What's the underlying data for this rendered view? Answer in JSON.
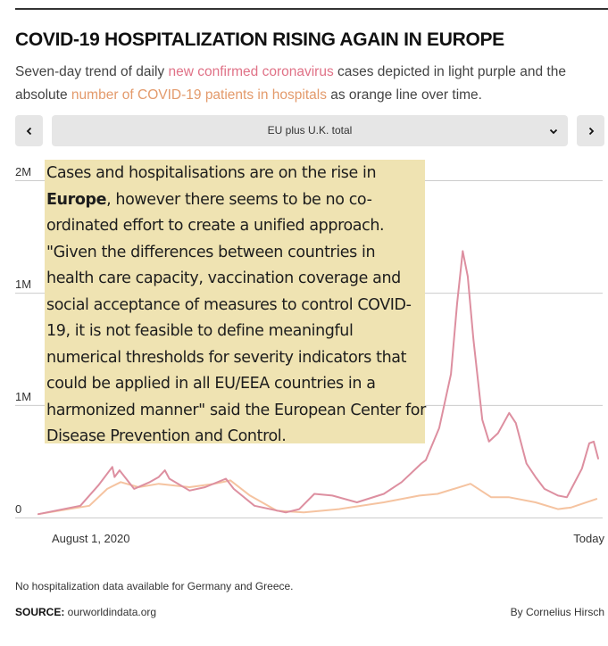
{
  "header": {
    "title": "COVID-19 HOSPITALIZATION RISING AGAIN IN EUROPE",
    "subtitle_part1": "Seven-day trend of daily ",
    "subtitle_cases_link": "new confirmed coronavirus",
    "subtitle_part2": " cases depicted in light purple and the absolute ",
    "subtitle_hosp_link": "number of COVID-19 patients in hospitals",
    "subtitle_part3": " as orange line over time."
  },
  "controls": {
    "prev_icon": "chevron-left-icon",
    "next_icon": "chevron-right-icon",
    "selected_region": "EU plus U.K. total",
    "dropdown_icon": "chevron-down-icon"
  },
  "annotation": {
    "text_before": "Cases and hospitalisations are on the rise in ",
    "text_bold": "Europe",
    "text_after": ", however there seems to be no co-ordinated effort to create a unified approach. \"Given the differences between countries in health care capacity, vaccination coverage and social acceptance of measures to control COVID-19, it is not feasible to define meaningful numerical thresholds for severity indicators that could be applied in all EU/EEA countries in a harmonized manner\" said the  European Center for Disease Prevention and Control."
  },
  "colors": {
    "cases": "#dd8fa0",
    "hospital": "#f5c3a0",
    "cases_text": "#e07287",
    "hospital_text": "#e39a6b",
    "annotation_bg": "#efe3b2",
    "gridline": "#cccccc"
  },
  "chart_data": {
    "type": "line",
    "title": "COVID-19 HOSPITALIZATION RISING AGAIN IN EUROPE",
    "xlabel": "",
    "ylabel": "",
    "x_tick_labels": [
      "August 1, 2020",
      "Today"
    ],
    "y_ticks": [
      {
        "value": 0,
        "label": "0"
      },
      {
        "value": 0.667,
        "label": "1M"
      },
      {
        "value": 1.333,
        "label": "1M"
      },
      {
        "value": 2.0,
        "label": "2M"
      }
    ],
    "ylim": [
      0,
      2.0
    ],
    "xlim": [
      0,
      1
    ],
    "x_unit": "fraction of period from August 1, 2020 to Today",
    "y_unit": "millions",
    "grid": true,
    "series": [
      {
        "name": "New confirmed coronavirus cases (7-day trend)",
        "color_key": "cases",
        "points": [
          [
            0.0,
            0.02
          ],
          [
            0.075,
            0.07
          ],
          [
            0.107,
            0.19
          ],
          [
            0.132,
            0.3
          ],
          [
            0.136,
            0.24
          ],
          [
            0.145,
            0.28
          ],
          [
            0.171,
            0.17
          ],
          [
            0.199,
            0.21
          ],
          [
            0.215,
            0.24
          ],
          [
            0.226,
            0.28
          ],
          [
            0.234,
            0.23
          ],
          [
            0.27,
            0.16
          ],
          [
            0.298,
            0.18
          ],
          [
            0.335,
            0.23
          ],
          [
            0.349,
            0.17
          ],
          [
            0.386,
            0.07
          ],
          [
            0.442,
            0.03
          ],
          [
            0.466,
            0.05
          ],
          [
            0.493,
            0.14
          ],
          [
            0.525,
            0.13
          ],
          [
            0.569,
            0.09
          ],
          [
            0.617,
            0.14
          ],
          [
            0.649,
            0.21
          ],
          [
            0.684,
            0.32
          ],
          [
            0.692,
            0.34
          ],
          [
            0.716,
            0.53
          ],
          [
            0.737,
            0.85
          ],
          [
            0.748,
            1.27
          ],
          [
            0.758,
            1.58
          ],
          [
            0.767,
            1.43
          ],
          [
            0.777,
            1.06
          ],
          [
            0.793,
            0.58
          ],
          [
            0.805,
            0.45
          ],
          [
            0.821,
            0.5
          ],
          [
            0.841,
            0.62
          ],
          [
            0.853,
            0.56
          ],
          [
            0.872,
            0.32
          ],
          [
            0.888,
            0.24
          ],
          [
            0.904,
            0.17
          ],
          [
            0.928,
            0.13
          ],
          [
            0.944,
            0.12
          ],
          [
            0.952,
            0.17
          ],
          [
            0.971,
            0.29
          ],
          [
            0.984,
            0.44
          ],
          [
            0.992,
            0.45
          ],
          [
            1.0,
            0.35
          ]
        ]
      },
      {
        "name": "COVID-19 patients in hospitals",
        "color_key": "hospital",
        "points": [
          [
            0.0,
            0.02
          ],
          [
            0.091,
            0.07
          ],
          [
            0.123,
            0.17
          ],
          [
            0.147,
            0.21
          ],
          [
            0.179,
            0.18
          ],
          [
            0.215,
            0.2
          ],
          [
            0.27,
            0.18
          ],
          [
            0.314,
            0.2
          ],
          [
            0.343,
            0.22
          ],
          [
            0.378,
            0.13
          ],
          [
            0.426,
            0.04
          ],
          [
            0.474,
            0.03
          ],
          [
            0.537,
            0.05
          ],
          [
            0.617,
            0.09
          ],
          [
            0.681,
            0.13
          ],
          [
            0.713,
            0.14
          ],
          [
            0.772,
            0.2
          ],
          [
            0.809,
            0.12
          ],
          [
            0.841,
            0.12
          ],
          [
            0.888,
            0.09
          ],
          [
            0.928,
            0.05
          ],
          [
            0.952,
            0.06
          ],
          [
            0.997,
            0.11
          ]
        ]
      }
    ]
  },
  "footer": {
    "note": "No hospitalization data available for Germany and Greece.",
    "source_label": "SOURCE:",
    "source_value": " ourworldindata.org",
    "byline": "By Cornelius Hirsch"
  }
}
